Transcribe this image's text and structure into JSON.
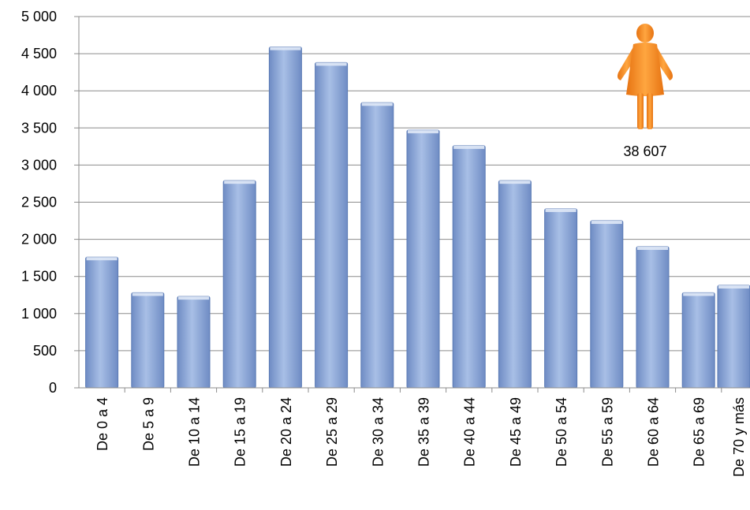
{
  "chart_data": {
    "type": "bar",
    "categories": [
      "De 0 a 4",
      "De 5 a 9",
      "De 10 a 14",
      "De 15 a 19",
      "De 20 a 24",
      "De 25 a 29",
      "De 30 a 34",
      "De 35 a 39",
      "De 40 a 44",
      "De 45 a 49",
      "De 50 a 54",
      "De 55 a 59",
      "De 60 a 64",
      "De 65 a 69",
      "De 70 y más"
    ],
    "values": [
      1760,
      1280,
      1230,
      2790,
      4590,
      4380,
      3840,
      3470,
      3260,
      2790,
      2410,
      2250,
      1900,
      1280,
      1380
    ],
    "yticks": [
      "0",
      "500",
      "1 000",
      "1 500",
      "2 000",
      "2 500",
      "3 000",
      "3 500",
      "4 000",
      "4 500",
      "5 000"
    ],
    "ylim": [
      0,
      5000
    ],
    "title": "",
    "xlabel": "",
    "ylabel": "",
    "grid": true,
    "legend": "none",
    "bar_color": "#8faadc",
    "annotation": {
      "icon": "woman-icon",
      "icon_color": "#f28c1e",
      "text": "38 607"
    }
  }
}
